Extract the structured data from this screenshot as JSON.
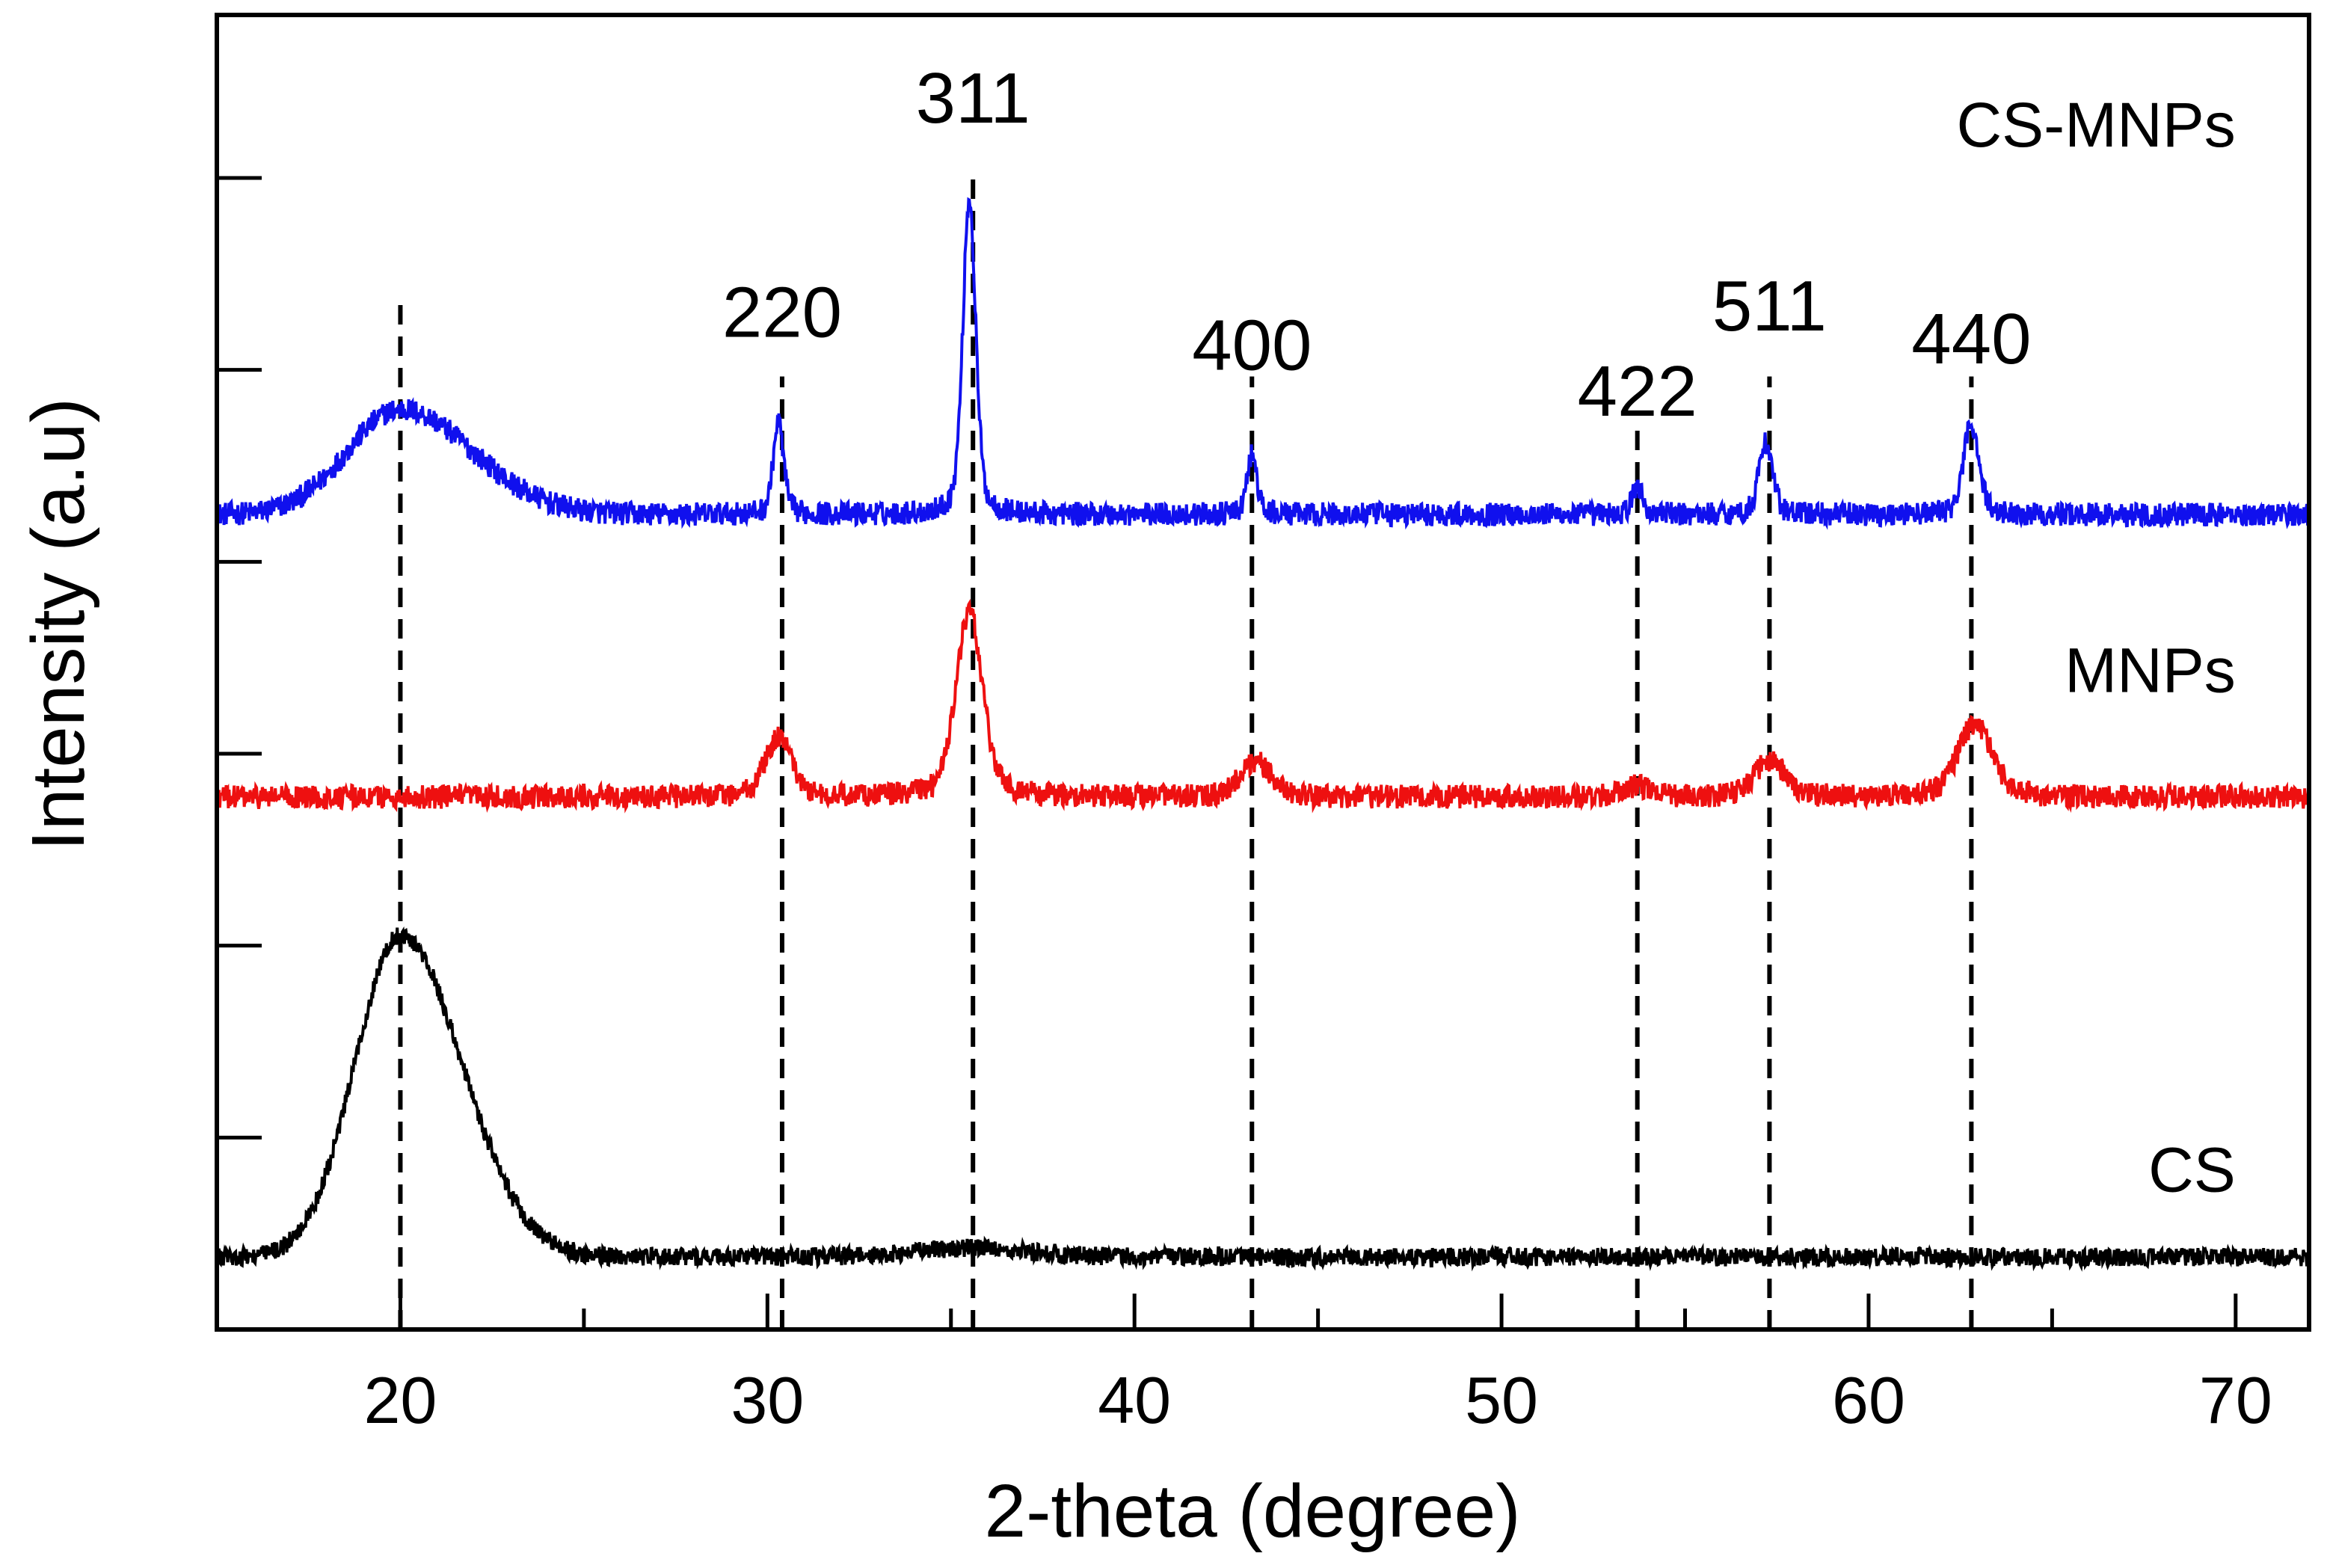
{
  "chart_data": {
    "type": "line",
    "title": "",
    "xlabel": "2-theta (degree)",
    "ylabel": "Intensity (a.u)",
    "xlim": [
      15,
      72
    ],
    "ylim": [
      0,
      100
    ],
    "x_ticks": [
      20,
      30,
      40,
      50,
      60,
      70
    ],
    "x_tick_labels": [
      "20",
      "30",
      "40",
      "50",
      "60",
      "70"
    ],
    "y_ticks_major": [
      14.6,
      43.8,
      73.0,
      102.2
    ],
    "y_tick_labels": [],
    "series": [
      {
        "name": "CS-MNPs",
        "color": "#1010ee",
        "baseline": 62,
        "noise": 0.9,
        "peaks": [
          {
            "center": 20.0,
            "height": 8.0,
            "width": 1.7,
            "shape": "asym"
          },
          {
            "center": 30.3,
            "height": 7.0,
            "width": 0.14
          },
          {
            "center": 35.5,
            "height": 24.0,
            "width": 0.17
          },
          {
            "center": 43.2,
            "height": 4.5,
            "width": 0.13
          },
          {
            "center": 53.7,
            "height": 2.2,
            "width": 0.13
          },
          {
            "center": 57.2,
            "height": 5.5,
            "width": 0.18
          },
          {
            "center": 62.8,
            "height": 7.0,
            "width": 0.2
          }
        ]
      },
      {
        "name": "MNPs",
        "color": "#ee1010",
        "baseline": 40.5,
        "noise": 0.9,
        "peaks": [
          {
            "center": 30.3,
            "height": 4.5,
            "width": 0.35
          },
          {
            "center": 35.5,
            "height": 14.0,
            "width": 0.35
          },
          {
            "center": 43.3,
            "height": 2.7,
            "width": 0.4
          },
          {
            "center": 53.7,
            "height": 0.8,
            "width": 0.4
          },
          {
            "center": 57.3,
            "height": 2.8,
            "width": 0.4
          },
          {
            "center": 62.9,
            "height": 5.6,
            "width": 0.45
          }
        ]
      },
      {
        "name": "CS",
        "color": "#000000",
        "baseline": 5.5,
        "noise": 0.7,
        "peaks": [
          {
            "center": 20.0,
            "height": 24.5,
            "width": 1.45,
            "shape": "asym"
          },
          {
            "center": 35.5,
            "height": 0.7,
            "width": 1.5
          }
        ]
      }
    ],
    "series_labels": [
      {
        "text": "CS-MNPs",
        "x": 70.0,
        "y": 90.0
      },
      {
        "text": "MNPs",
        "x": 70.0,
        "y": 48.5
      },
      {
        "text": "CS",
        "x": 70.0,
        "y": 10.5
      }
    ],
    "reference_lines": [
      {
        "x": 20.0,
        "y_top": 78.5
      },
      {
        "x": 30.4,
        "y_top": 72.5,
        "label": "220",
        "label_x": 30.4,
        "label_y": 75.5
      },
      {
        "x": 35.6,
        "y_top": 88.0,
        "label": "311",
        "label_x": 35.6,
        "label_y": 91.8
      },
      {
        "x": 43.2,
        "y_top": 72.5,
        "label": "400",
        "label_x": 43.2,
        "label_y": 73.0
      },
      {
        "x": 53.7,
        "y_top": 69.0,
        "label": "422",
        "label_x": 53.7,
        "label_y": 69.5
      },
      {
        "x": 57.3,
        "y_top": 72.5,
        "label": "511",
        "label_x": 57.3,
        "label_y": 76.0
      },
      {
        "x": 62.8,
        "y_top": 72.5,
        "label": "440",
        "label_x": 62.8,
        "label_y": 73.5
      }
    ]
  }
}
